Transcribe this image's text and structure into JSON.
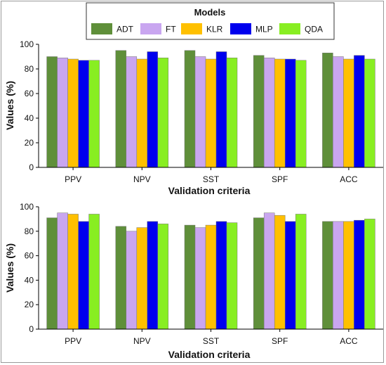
{
  "legend": {
    "title": "Models",
    "items": [
      {
        "name": "ADT",
        "color": "#5f8f3a"
      },
      {
        "name": "FT",
        "color": "#c9a6f0"
      },
      {
        "name": "KLR",
        "color": "#ffc000"
      },
      {
        "name": "MLP",
        "color": "#0000ee"
      },
      {
        "name": "QDA",
        "color": "#88ee22"
      }
    ]
  },
  "chart_data": [
    {
      "type": "bar",
      "categories": [
        "PPV",
        "NPV",
        "SST",
        "SPF",
        "ACC"
      ],
      "series": [
        {
          "name": "ADT",
          "values": [
            90,
            95,
            95,
            91,
            93
          ]
        },
        {
          "name": "FT",
          "values": [
            89,
            90,
            90,
            89,
            90
          ]
        },
        {
          "name": "KLR",
          "values": [
            88,
            88,
            88,
            88,
            88
          ]
        },
        {
          "name": "MLP",
          "values": [
            87,
            94,
            94,
            88,
            91
          ]
        },
        {
          "name": "QDA",
          "values": [
            87,
            89,
            89,
            87,
            88
          ]
        }
      ],
      "xlabel": "Validation criteria",
      "ylabel": "Values (%)",
      "ylim": [
        0,
        100
      ],
      "yticks": [
        0,
        20,
        40,
        60,
        80,
        100
      ]
    },
    {
      "type": "bar",
      "categories": [
        "PPV",
        "NPV",
        "SST",
        "SPF",
        "ACC"
      ],
      "series": [
        {
          "name": "ADT",
          "values": [
            91,
            84,
            85,
            91,
            88
          ]
        },
        {
          "name": "FT",
          "values": [
            95,
            80,
            83,
            95,
            88
          ]
        },
        {
          "name": "KLR",
          "values": [
            94,
            83,
            85,
            93,
            88
          ]
        },
        {
          "name": "MLP",
          "values": [
            88,
            88,
            88,
            88,
            89
          ]
        },
        {
          "name": "QDA",
          "values": [
            94,
            86,
            87,
            94,
            90
          ]
        }
      ],
      "xlabel": "Validation criteria",
      "ylabel": "Values (%)",
      "ylim": [
        0,
        100
      ],
      "yticks": [
        0,
        20,
        40,
        60,
        80,
        100
      ]
    }
  ]
}
